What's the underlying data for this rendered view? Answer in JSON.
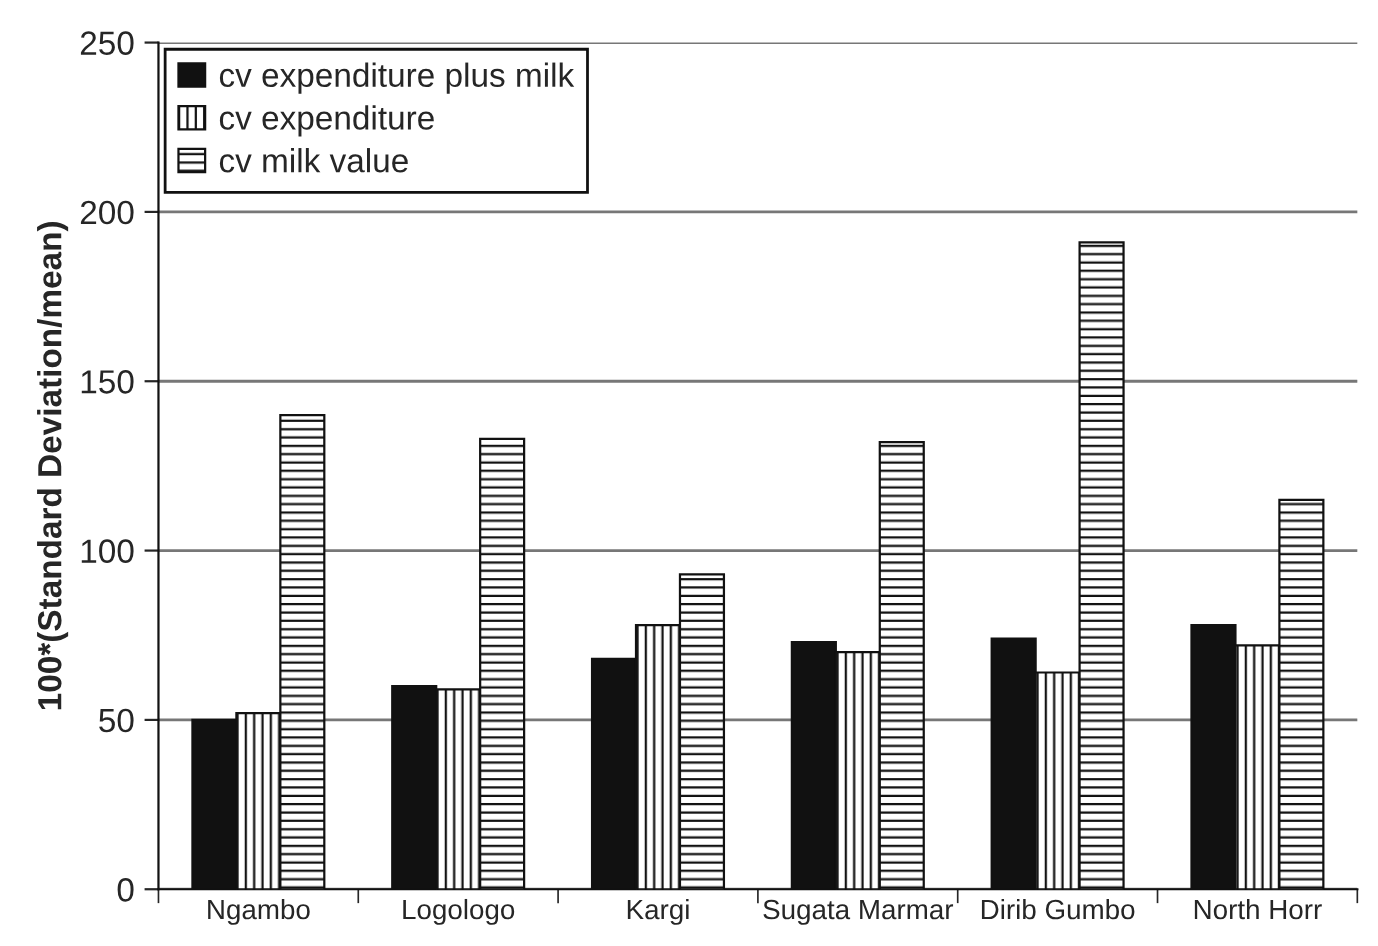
{
  "chart_data": {
    "type": "bar",
    "ylabel": "100*(Standard Deviation/mean)",
    "categories": [
      "Ngambo",
      "Logologo",
      "Kargi",
      "Sugata Marmar",
      "Dirib Gumbo",
      "North Horr"
    ],
    "series": [
      {
        "name": "cv expenditure plus milk",
        "color": "#111111",
        "values": [
          50,
          60,
          68,
          73,
          74,
          78
        ]
      },
      {
        "name": "cv expenditure",
        "color": "#111111",
        "values": [
          52,
          59,
          78,
          70,
          64,
          72
        ]
      },
      {
        "name": "cv milk value",
        "color": "#111111",
        "values": [
          140,
          133,
          93,
          132,
          191,
          115
        ]
      }
    ],
    "ylim": [
      0,
      250
    ],
    "yticks": [
      0,
      50,
      100,
      150,
      200,
      250
    ],
    "grid": "y",
    "legend": "top left"
  }
}
